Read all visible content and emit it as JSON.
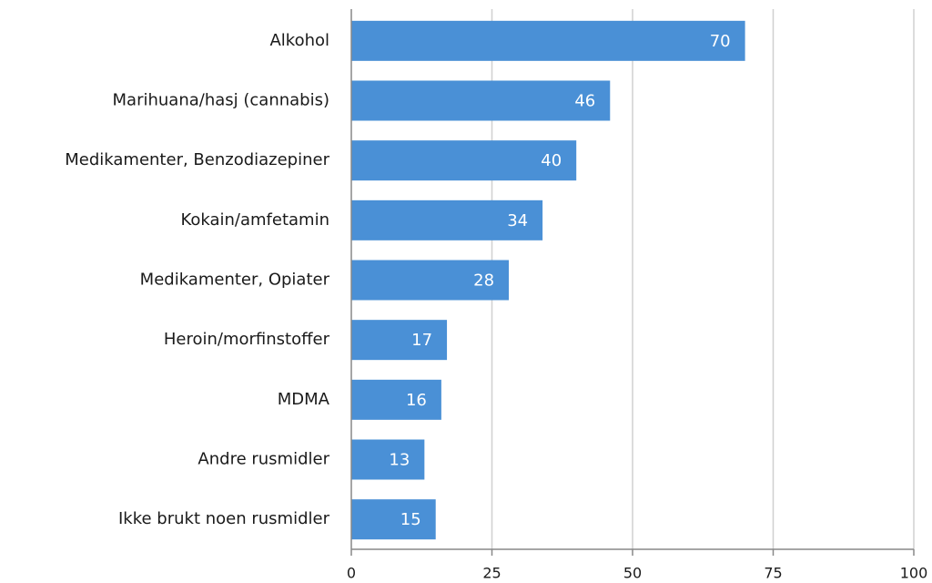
{
  "chart_data": {
    "type": "bar",
    "orientation": "horizontal",
    "categories": [
      "Alkohol",
      "Marihuana/hasj (cannabis)",
      "Medikamenter, Benzodiazepiner",
      "Kokain/amfetamin",
      "Medikamenter, Opiater",
      "Heroin/morfinstoffer",
      "MDMA",
      "Andre rusmidler",
      "Ikke brukt noen rusmidler"
    ],
    "values": [
      70,
      46,
      40,
      34,
      28,
      17,
      16,
      13,
      15
    ],
    "color": "#4a90d6",
    "xlim": [
      0,
      100
    ],
    "xticks": [
      0,
      25,
      50,
      75,
      100
    ],
    "grid": true
  }
}
